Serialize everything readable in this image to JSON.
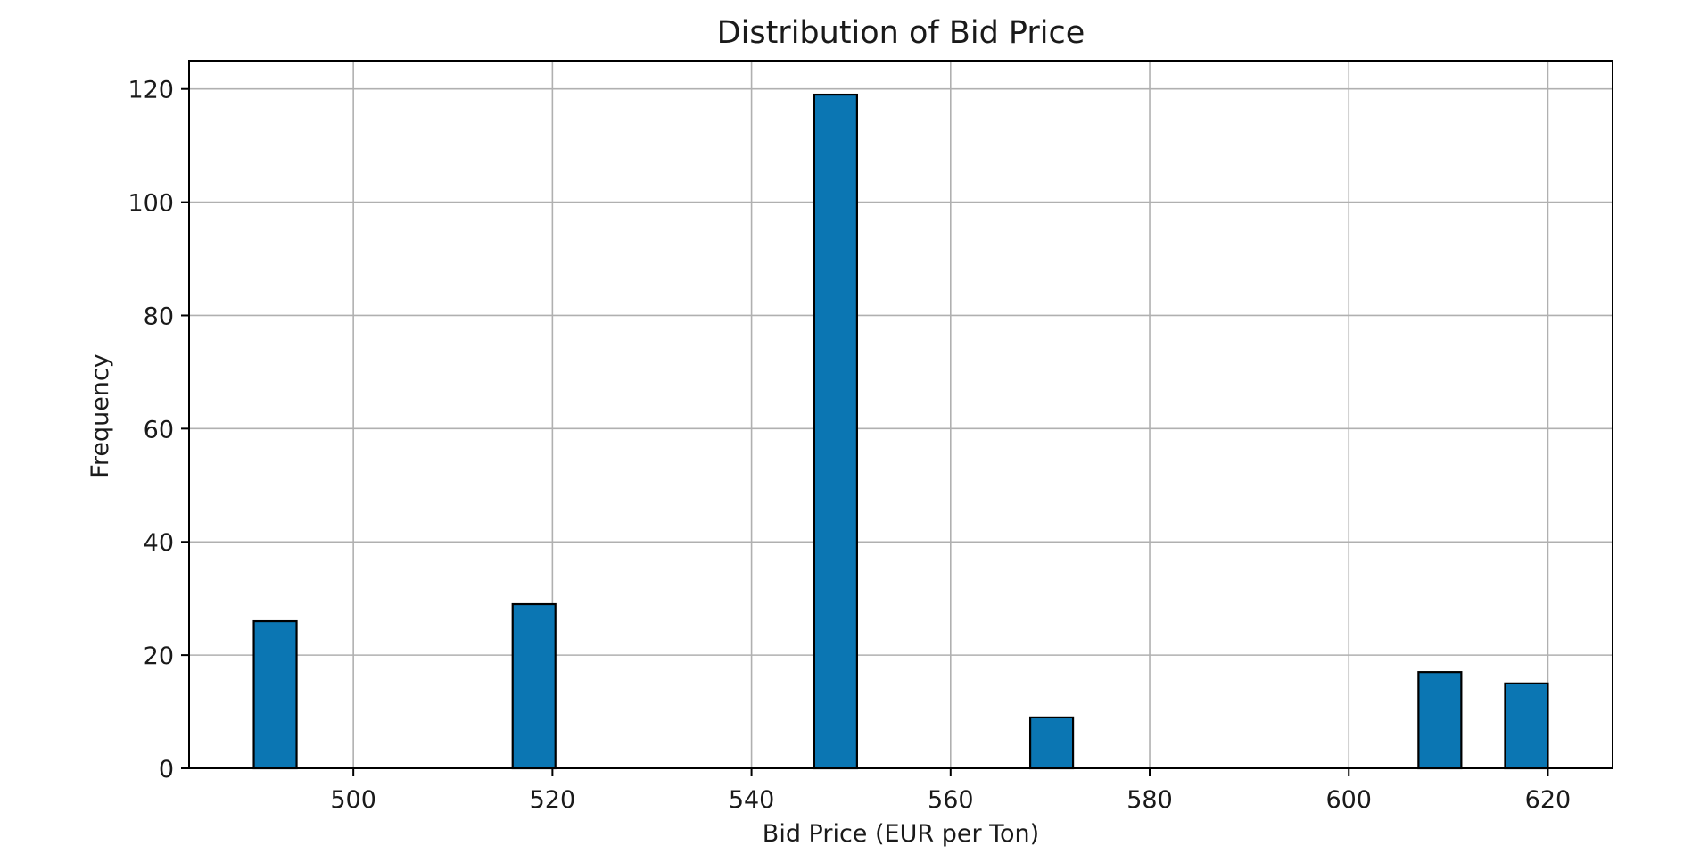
{
  "chart_data": {
    "type": "bar",
    "title": "Distribution of Bid Price",
    "xlabel": "Bid Price (EUR per Ton)",
    "ylabel": "Frequency",
    "xlim": [
      483.5,
      626.5
    ],
    "ylim": [
      0,
      125
    ],
    "xticks": [
      500,
      520,
      540,
      560,
      580,
      600,
      620
    ],
    "yticks": [
      0,
      20,
      40,
      60,
      80,
      100,
      120
    ],
    "bin_width": 4.33,
    "bins": [
      {
        "x0": 490.0,
        "x1": 494.3,
        "count": 26
      },
      {
        "x0": 516.0,
        "x1": 520.3,
        "count": 29
      },
      {
        "x0": 546.3,
        "x1": 550.6,
        "count": 119
      },
      {
        "x0": 568.0,
        "x1": 572.3,
        "count": 9
      },
      {
        "x0": 607.0,
        "x1": 611.3,
        "count": 17
      },
      {
        "x0": 615.7,
        "x1": 620.0,
        "count": 15
      }
    ],
    "grid": true,
    "colors": {
      "bar": "#0b76b3",
      "edge": "#000000",
      "grid": "#b0b0b0"
    }
  }
}
